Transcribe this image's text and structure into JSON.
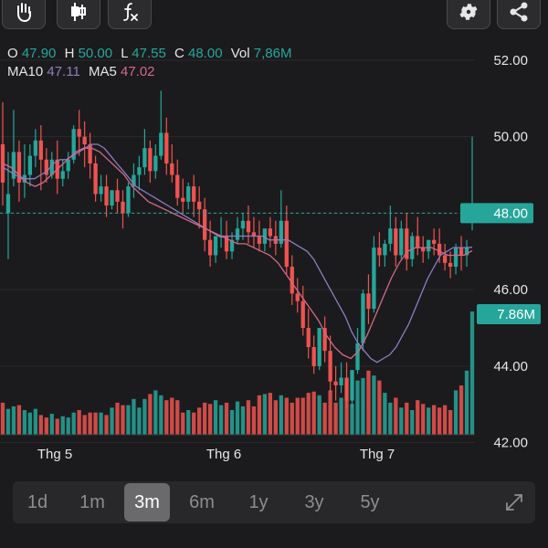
{
  "toolbar": {
    "left_icons": [
      "hand-draw-icon",
      "candlestick-icon",
      "function-fx-icon"
    ],
    "right_icons": [
      "gear-icon",
      "share-icon"
    ]
  },
  "ohlc": {
    "o_label": "O",
    "o_value": "47.90",
    "h_label": "H",
    "h_value": "50.00",
    "l_label": "L",
    "l_value": "47.55",
    "c_label": "C",
    "c_value": "48.00",
    "vol_label": "Vol",
    "vol_value": "7,86M"
  },
  "ma": {
    "ma10_label": "MA10",
    "ma10_value": "47.11",
    "ma5_label": "MA5",
    "ma5_value": "47.02"
  },
  "colors": {
    "up": "#26a69a",
    "down": "#ef5350",
    "ma10": "#8e7cc3",
    "ma5": "#d4688a",
    "badge_bg": "#26a69a",
    "background": "#1b1b1d"
  },
  "chart_data": {
    "type": "candlestick",
    "y_ticks": [
      "52.00",
      "50.00",
      "48.00",
      "46.00",
      "44.00",
      "42.00"
    ],
    "ylim": [
      41.3,
      53.0
    ],
    "x_ticks": [
      "Thg 5",
      "Thg 6",
      "Thg 7"
    ],
    "last_price_label": "48.00",
    "last_price": 48.0,
    "volume_label": "7.86M",
    "candles": [
      [
        49.8,
        50.9,
        48.8,
        48.2,
        0.26
      ],
      [
        48.0,
        49.6,
        48.5,
        46.8,
        0.21
      ],
      [
        48.9,
        50.7,
        49.6,
        48.7,
        0.23
      ],
      [
        49.6,
        49.9,
        48.8,
        48.3,
        0.24
      ],
      [
        48.8,
        49.8,
        49.0,
        48.4,
        0.2
      ],
      [
        49.0,
        49.8,
        49.5,
        48.7,
        0.18
      ],
      [
        49.5,
        50.2,
        49.9,
        49.2,
        0.21
      ],
      [
        49.9,
        50.3,
        49.4,
        48.6,
        0.16
      ],
      [
        49.4,
        49.7,
        49.0,
        48.8,
        0.14
      ],
      [
        49.0,
        49.6,
        49.4,
        48.9,
        0.17
      ],
      [
        49.4,
        49.9,
        48.9,
        48.5,
        0.13
      ],
      [
        48.9,
        49.4,
        49.1,
        48.7,
        0.15
      ],
      [
        49.1,
        49.6,
        49.4,
        48.9,
        0.14
      ],
      [
        49.4,
        50.3,
        50.2,
        49.3,
        0.18
      ],
      [
        50.2,
        50.7,
        50.0,
        49.5,
        0.2
      ],
      [
        50.0,
        50.4,
        49.8,
        49.2,
        0.16
      ],
      [
        49.8,
        50.1,
        49.3,
        48.9,
        0.18
      ],
      [
        49.3,
        49.5,
        48.5,
        48.3,
        0.18
      ],
      [
        48.5,
        49.0,
        48.7,
        48.3,
        0.18
      ],
      [
        48.7,
        49.0,
        48.2,
        47.9,
        0.16
      ],
      [
        48.2,
        48.6,
        48.6,
        48.1,
        0.22
      ],
      [
        48.6,
        48.9,
        48.3,
        48.0,
        0.26
      ],
      [
        48.3,
        48.6,
        48.0,
        47.6,
        0.24
      ],
      [
        48.0,
        48.8,
        48.7,
        47.9,
        0.24
      ],
      [
        48.7,
        49.3,
        49.0,
        48.4,
        0.29
      ],
      [
        49.0,
        49.5,
        49.2,
        48.6,
        0.22
      ],
      [
        49.2,
        50.2,
        49.7,
        49.0,
        0.29
      ],
      [
        49.7,
        49.9,
        49.1,
        48.8,
        0.33
      ],
      [
        49.1,
        49.8,
        49.5,
        48.9,
        0.36
      ],
      [
        49.5,
        51.2,
        50.1,
        49.4,
        0.32
      ],
      [
        50.1,
        50.5,
        49.3,
        49.0,
        0.28
      ],
      [
        49.3,
        49.8,
        49.0,
        48.8,
        0.3
      ],
      [
        49.0,
        49.4,
        48.4,
        48.2,
        0.28
      ],
      [
        48.4,
        48.9,
        48.3,
        48.0,
        0.18
      ],
      [
        48.3,
        48.8,
        48.7,
        48.1,
        0.2
      ],
      [
        48.7,
        49.0,
        48.3,
        47.9,
        0.18
      ],
      [
        48.3,
        48.7,
        48.1,
        47.6,
        0.22
      ],
      [
        48.1,
        48.4,
        47.3,
        47.0,
        0.26
      ],
      [
        47.3,
        47.8,
        46.9,
        46.6,
        0.25
      ],
      [
        46.9,
        47.3,
        47.4,
        46.7,
        0.28
      ],
      [
        47.4,
        47.9,
        47.4,
        47.1,
        0.24
      ],
      [
        47.4,
        47.8,
        47.0,
        46.8,
        0.26
      ],
      [
        47.0,
        47.5,
        47.3,
        46.8,
        0.2
      ],
      [
        47.3,
        47.9,
        47.6,
        47.2,
        0.27
      ],
      [
        47.6,
        48.0,
        47.8,
        47.3,
        0.23
      ],
      [
        47.8,
        48.2,
        47.5,
        47.2,
        0.28
      ],
      [
        47.5,
        47.9,
        47.4,
        47.1,
        0.23
      ],
      [
        47.4,
        47.8,
        47.2,
        47.0,
        0.32
      ],
      [
        47.2,
        47.6,
        47.6,
        47.0,
        0.33
      ],
      [
        47.6,
        47.9,
        47.4,
        47.1,
        0.34
      ],
      [
        47.4,
        47.8,
        47.2,
        46.9,
        0.28
      ],
      [
        47.2,
        48.6,
        47.8,
        47.1,
        0.32
      ],
      [
        47.8,
        48.2,
        46.6,
        46.4,
        0.3
      ],
      [
        46.6,
        46.9,
        45.9,
        45.6,
        0.26
      ],
      [
        45.9,
        46.3,
        45.7,
        45.4,
        0.3
      ],
      [
        45.7,
        46.1,
        45.0,
        44.8,
        0.3
      ],
      [
        45.0,
        45.5,
        44.5,
        44.2,
        0.34
      ],
      [
        44.5,
        44.8,
        44.0,
        43.8,
        0.35
      ],
      [
        44.0,
        44.4,
        45.0,
        43.9,
        0.32
      ],
      [
        45.0,
        45.3,
        44.4,
        44.1,
        0.26
      ],
      [
        44.4,
        44.8,
        43.6,
        43.3,
        0.36
      ],
      [
        43.6,
        44.0,
        43.5,
        43.1,
        0.26
      ],
      [
        43.5,
        44.1,
        43.7,
        43.3,
        0.3
      ],
      [
        43.7,
        44.1,
        43.1,
        42.9,
        0.28
      ],
      [
        43.1,
        43.5,
        43.9,
        42.9,
        0.25
      ],
      [
        43.9,
        45.0,
        44.6,
        43.8,
        0.44
      ],
      [
        44.6,
        46.0,
        45.9,
        44.4,
        0.46
      ],
      [
        45.9,
        46.4,
        45.5,
        45.1,
        0.52
      ],
      [
        45.5,
        47.4,
        47.1,
        45.4,
        0.48
      ],
      [
        47.1,
        47.5,
        46.9,
        46.6,
        0.44
      ],
      [
        46.9,
        47.3,
        47.2,
        46.6,
        0.34
      ],
      [
        47.2,
        48.2,
        47.6,
        47.0,
        0.26
      ],
      [
        47.6,
        47.9,
        46.9,
        46.6,
        0.3
      ],
      [
        46.9,
        47.8,
        47.6,
        46.8,
        0.22
      ],
      [
        47.6,
        48.0,
        46.8,
        46.5,
        0.26
      ],
      [
        46.8,
        47.5,
        47.4,
        46.6,
        0.2
      ],
      [
        47.4,
        47.9,
        47.1,
        46.9,
        0.28
      ],
      [
        47.1,
        47.4,
        47.0,
        46.7,
        0.25
      ],
      [
        47.0,
        47.3,
        47.3,
        46.8,
        0.22
      ],
      [
        47.3,
        47.6,
        47.2,
        46.9,
        0.24
      ],
      [
        47.2,
        47.6,
        46.9,
        46.7,
        0.22
      ],
      [
        46.9,
        47.2,
        46.7,
        46.5,
        0.24
      ],
      [
        46.7,
        47.0,
        46.6,
        46.3,
        0.2
      ],
      [
        46.6,
        47.2,
        47.1,
        46.4,
        0.36
      ],
      [
        47.1,
        47.4,
        46.9,
        46.5,
        0.4
      ],
      [
        46.9,
        47.3,
        47.1,
        46.6,
        0.52
      ],
      [
        47.9,
        50.0,
        48.0,
        47.55,
        1.0
      ]
    ],
    "ma10": [
      49.2,
      49.1,
      49.0,
      48.9,
      48.9,
      48.9,
      49.0,
      49.1,
      49.3,
      49.4,
      49.4,
      49.5,
      49.6,
      49.7,
      49.8,
      49.8,
      49.7,
      49.5,
      49.3,
      49.1,
      48.9,
      48.7,
      48.6,
      48.5,
      48.4,
      48.3,
      48.2,
      48.1,
      48.0,
      47.9,
      47.8,
      47.7,
      47.6,
      47.5,
      47.4,
      47.4,
      47.4,
      47.4,
      47.4,
      47.4,
      47.4,
      47.4,
      47.3,
      47.3,
      47.3,
      47.3,
      47.2,
      47.1,
      47.0,
      46.8,
      46.5,
      46.2,
      45.9,
      45.6,
      45.3,
      44.9,
      44.6,
      44.4,
      44.2,
      44.1,
      44.2,
      44.3,
      44.5,
      44.8,
      45.1,
      45.5,
      45.9,
      46.3,
      46.6,
      46.9,
      47.0,
      47.1,
      47.1,
      47.1,
      47.11
    ],
    "ma5": [
      49.3,
      49.2,
      49.0,
      48.8,
      48.7,
      48.8,
      49.0,
      49.2,
      49.4,
      49.6,
      49.7,
      49.7,
      49.6,
      49.4,
      49.2,
      49.0,
      48.7,
      48.5,
      48.3,
      48.2,
      48.1,
      48.0,
      47.9,
      47.8,
      47.7,
      47.6,
      47.5,
      47.4,
      47.3,
      47.2,
      47.2,
      47.1,
      47.0,
      46.9,
      46.7,
      46.4,
      46.1,
      45.8,
      45.5,
      45.2,
      44.8,
      44.5,
      44.3,
      44.2,
      44.4,
      44.8,
      45.3,
      45.8,
      46.3,
      46.7,
      47.0,
      47.1,
      47.1,
      47.1,
      47.0,
      46.9,
      46.9,
      46.9,
      47.02
    ]
  },
  "range_tabs": [
    {
      "label": "1d",
      "active": false
    },
    {
      "label": "1m",
      "active": false
    },
    {
      "label": "3m",
      "active": true
    },
    {
      "label": "6m",
      "active": false
    },
    {
      "label": "1y",
      "active": false
    },
    {
      "label": "3y",
      "active": false
    },
    {
      "label": "5y",
      "active": false
    }
  ]
}
